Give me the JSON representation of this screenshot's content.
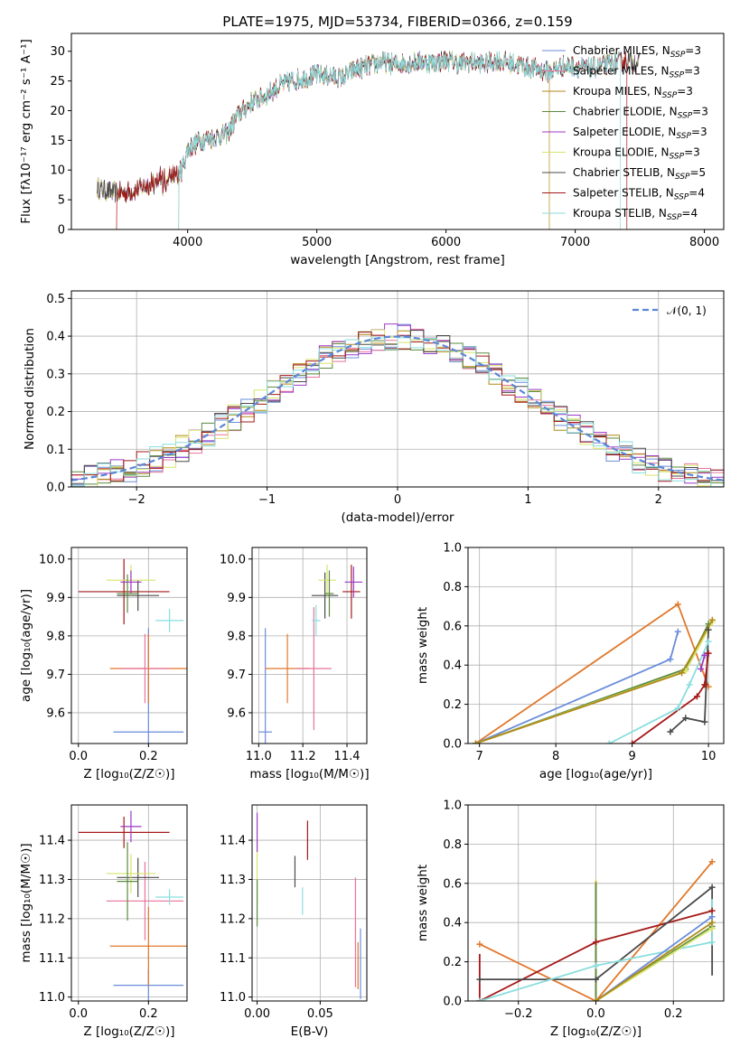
{
  "colors": {
    "Chabrier MILES": "#6a8ddb",
    "Salpeter MILES": "#e8739a",
    "Kroupa MILES": "#b08a16",
    "Chabrier ELODIE": "#5b8a3e",
    "Salpeter ELODIE": "#9b39c6",
    "Kroupa ELODIE": "#d7e36a",
    "Chabrier STELIB": "#4a4a4a",
    "Salpeter STELIB": "#a51818",
    "Kroupa STELIB": "#8adede",
    "normal": "#5b86d9",
    "orange": "#e0782c"
  },
  "chart_data": [
    {
      "id": "spectrum",
      "type": "line",
      "title": "PLATE=1975, MJD=53734, FIBERID=0366, z=0.159",
      "xlabel": "wavelength [Angstrom, rest frame]",
      "ylabel": "Flux [fλ10⁻¹⁷ erg cm⁻² s⁻¹ A⁻¹]",
      "xlim": [
        3100,
        8150
      ],
      "ylim": [
        0,
        33
      ],
      "xticks": [
        4000,
        5000,
        6000,
        7000,
        8000
      ],
      "yticks": [
        0,
        5,
        10,
        15,
        20,
        25,
        30
      ],
      "grid": false,
      "legend_position": "upper-right",
      "legend": [
        "Chabrier MILES, NSSP=3",
        "Salpeter MILES, NSSP=3",
        "Kroupa MILES, NSSP=3",
        "Chabrier ELODIE, NSSP=3",
        "Salpeter ELODIE, NSSP=3",
        "Kroupa ELODIE, NSSP=3",
        "Chabrier STELIB, NSSP=5",
        "Salpeter STELIB, NSSP=4",
        "Kroupa STELIB, NSSP=4"
      ],
      "continuum": {
        "wavelength": [
          3300,
          3400,
          3500,
          3600,
          3700,
          3800,
          3900,
          3950,
          4000,
          4100,
          4200,
          4300,
          4400,
          4500,
          4600,
          4700,
          4800,
          4900,
          5000,
          5100,
          5200,
          5300,
          5400,
          5500,
          5600,
          5700,
          5800,
          5900,
          6000,
          6100,
          6200,
          6300,
          6400,
          6500,
          6600,
          6700,
          6800,
          6900,
          7000,
          7100,
          7200,
          7300,
          7400,
          7500
        ],
        "flux": [
          7.0,
          6.3,
          6.2,
          6.6,
          7.6,
          8.2,
          9.0,
          9.5,
          13.5,
          15.0,
          15.5,
          16.0,
          19.5,
          21.5,
          22.5,
          24.0,
          25.0,
          25.5,
          26.0,
          25.8,
          25.5,
          27.0,
          27.5,
          28.2,
          27.8,
          28.0,
          28.3,
          28.0,
          28.5,
          28.0,
          28.2,
          27.8,
          28.5,
          28.0,
          27.5,
          27.0,
          26.5,
          27.5,
          27.5,
          27.0,
          27.5,
          28.0,
          28.5,
          28.0
        ]
      },
      "model_cutoffs": {
        "Salpeter STELIB": [
          3450,
          7400
        ],
        "Kroupa MILES": [
          3930,
          6800
        ],
        "Kroupa STELIB": [
          3930,
          7350
        ]
      }
    },
    {
      "id": "residuals",
      "type": "histogram",
      "xlabel": "(data-model)/error",
      "ylabel": "Normed distribution",
      "xlim": [
        -2.5,
        2.5
      ],
      "ylim": [
        0,
        0.52
      ],
      "xticks": [
        -2,
        -1,
        0,
        1,
        2
      ],
      "yticks": [
        0.0,
        0.1,
        0.2,
        0.3,
        0.4,
        0.5
      ],
      "grid": true,
      "legend_position": "upper-right",
      "legend": [
        "𝒩(0, 1)"
      ],
      "bin_width": 0.1
    },
    {
      "id": "age-vs-Z",
      "type": "errorbar",
      "xlabel": "Z [log₁₀(Z/Z☉)]",
      "ylabel": "age  [log₁₀(age/yr)]",
      "xlim": [
        -0.02,
        0.31
      ],
      "ylim": [
        9.52,
        10.03
      ],
      "xticks": [
        0.0,
        0.2
      ],
      "yticks": [
        9.6,
        9.7,
        9.8,
        9.9,
        10.0
      ],
      "grid": true,
      "points": [
        {
          "model": "Chabrier MILES",
          "x": 0.2,
          "y": 9.55,
          "xerr": 0.1,
          "yerr": 0.27
        },
        {
          "model": "orange",
          "x": 0.2,
          "y": 9.715,
          "xerr": 0.11,
          "yerr": 0.09
        },
        {
          "model": "Salpeter MILES",
          "x": 0.19,
          "y": 9.715,
          "xerr": 0.07,
          "yerr": 0.09
        },
        {
          "model": "Kroupa STELIB",
          "x": 0.26,
          "y": 9.84,
          "xerr": 0.04,
          "yerr": 0.03
        },
        {
          "model": "Salpeter STELIB",
          "x": 0.13,
          "y": 9.915,
          "xerr": 0.13,
          "yerr": 0.085
        },
        {
          "model": "Chabrier STELIB",
          "x": 0.17,
          "y": 9.905,
          "xerr": 0.06,
          "yerr": 0.04
        },
        {
          "model": "Kroupa ELODIE",
          "x": 0.15,
          "y": 9.945,
          "xerr": 0.07,
          "yerr": 0.04
        },
        {
          "model": "Chabrier ELODIE",
          "x": 0.14,
          "y": 9.91,
          "xerr": 0.03,
          "yerr": 0.05
        },
        {
          "model": "Salpeter ELODIE",
          "x": 0.15,
          "y": 9.94,
          "xerr": 0.03,
          "yerr": 0.03
        }
      ]
    },
    {
      "id": "age-vs-mass",
      "type": "errorbar",
      "xlabel": "mass [log₁₀(M/M☉)]",
      "ylabel": "",
      "xlim": [
        10.97,
        11.49
      ],
      "ylim": [
        9.52,
        10.03
      ],
      "xticks": [
        11.0,
        11.2,
        11.4
      ],
      "yticks": [
        9.6,
        9.7,
        9.8,
        9.9,
        10.0
      ],
      "grid": true,
      "points": [
        {
          "model": "Chabrier MILES",
          "x": 11.03,
          "y": 9.55,
          "xerr": 0.03,
          "yerr": 0.27
        },
        {
          "model": "orange",
          "x": 11.13,
          "y": 9.715,
          "xerr": 0.1,
          "yerr": 0.09
        },
        {
          "model": "Salpeter MILES",
          "x": 11.25,
          "y": 9.715,
          "xerr": 0.08,
          "yerr": 0.16
        },
        {
          "model": "Kroupa STELIB",
          "x": 11.26,
          "y": 9.84,
          "xerr": 0.02,
          "yerr": 0.04
        },
        {
          "model": "Salpeter STELIB",
          "x": 11.42,
          "y": 9.915,
          "xerr": 0.04,
          "yerr": 0.07
        },
        {
          "model": "Chabrier STELIB",
          "x": 11.3,
          "y": 9.905,
          "xerr": 0.06,
          "yerr": 0.06
        },
        {
          "model": "Kroupa ELODIE",
          "x": 11.31,
          "y": 9.945,
          "xerr": 0.04,
          "yerr": 0.04
        },
        {
          "model": "Chabrier ELODIE",
          "x": 11.32,
          "y": 9.91,
          "xerr": 0.02,
          "yerr": 0.06
        },
        {
          "model": "Salpeter ELODIE",
          "x": 11.43,
          "y": 9.94,
          "xerr": 0.04,
          "yerr": 0.04
        }
      ]
    },
    {
      "id": "massweight-vs-age",
      "type": "line",
      "xlabel": "age  [log₁₀(age/yr)]",
      "ylabel": "mass weight",
      "xlim": [
        6.85,
        10.2
      ],
      "ylim": [
        0,
        1
      ],
      "xticks": [
        7,
        8,
        9,
        10
      ],
      "yticks": [
        0.0,
        0.2,
        0.4,
        0.6,
        0.8,
        1.0
      ],
      "grid": true,
      "series": [
        {
          "model": "orange",
          "x": [
            6.95,
            9.6,
            10.0
          ],
          "y": [
            0.0,
            0.71,
            0.29
          ]
        },
        {
          "model": "Chabrier MILES",
          "x": [
            6.95,
            9.5,
            9.6
          ],
          "y": [
            0.0,
            0.43,
            0.57
          ]
        },
        {
          "model": "Chabrier ELODIE",
          "x": [
            6.95,
            9.7,
            10.0
          ],
          "y": [
            0.0,
            0.38,
            0.61
          ]
        },
        {
          "model": "Kroupa ELODIE",
          "x": [
            6.95,
            9.7,
            10.05
          ],
          "y": [
            0.0,
            0.37,
            0.62
          ]
        },
        {
          "model": "Kroupa MILES",
          "x": [
            6.95,
            9.65,
            10.05
          ],
          "y": [
            0.0,
            0.36,
            0.63
          ]
        },
        {
          "model": "Chabrier STELIB",
          "x": [
            9.5,
            9.7,
            9.95,
            10.0
          ],
          "y": [
            0.06,
            0.13,
            0.11,
            0.58
          ]
        },
        {
          "model": "Salpeter STELIB",
          "x": [
            9.0,
            9.85,
            9.95,
            10.0
          ],
          "y": [
            0.0,
            0.24,
            0.3,
            0.46
          ]
        },
        {
          "model": "Kroupa STELIB",
          "x": [
            8.7,
            9.6,
            9.75,
            10.0
          ],
          "y": [
            0.0,
            0.18,
            0.3,
            0.52
          ]
        },
        {
          "model": "Salpeter ELODIE",
          "x": [
            9.9,
            9.95
          ],
          "y": [
            0.38,
            0.45
          ]
        }
      ]
    },
    {
      "id": "mass-vs-Z",
      "type": "errorbar",
      "xlabel": "Z [log₁₀(Z/Z☉)]",
      "ylabel": "mass [log₁₀(M/M☉)]",
      "xlim": [
        -0.02,
        0.31
      ],
      "ylim": [
        10.99,
        11.49
      ],
      "xticks": [
        0.0,
        0.2
      ],
      "yticks": [
        11.0,
        11.1,
        11.2,
        11.3,
        11.4
      ],
      "grid": true,
      "points": [
        {
          "model": "Chabrier MILES",
          "x": 0.2,
          "y": 11.03,
          "xerr": 0.1,
          "yerr": 0.04
        },
        {
          "model": "orange",
          "x": 0.2,
          "y": 11.13,
          "xerr": 0.11,
          "yerr": 0.1
        },
        {
          "model": "Salpeter MILES",
          "x": 0.19,
          "y": 11.245,
          "xerr": 0.11,
          "yerr": 0.1
        },
        {
          "model": "Kroupa STELIB",
          "x": 0.26,
          "y": 11.255,
          "xerr": 0.04,
          "yerr": 0.02
        },
        {
          "model": "Salpeter STELIB",
          "x": 0.13,
          "y": 11.42,
          "xerr": 0.13,
          "yerr": 0.04
        },
        {
          "model": "Chabrier STELIB",
          "x": 0.17,
          "y": 11.305,
          "xerr": 0.06,
          "yerr": 0.05
        },
        {
          "model": "Kroupa ELODIE",
          "x": 0.15,
          "y": 11.315,
          "xerr": 0.07,
          "yerr": 0.05
        },
        {
          "model": "Chabrier ELODIE",
          "x": 0.14,
          "y": 11.295,
          "xerr": 0.03,
          "yerr": 0.1
        },
        {
          "model": "Salpeter ELODIE",
          "x": 0.15,
          "y": 11.435,
          "xerr": 0.03,
          "yerr": 0.04
        }
      ]
    },
    {
      "id": "mass-vs-EBV",
      "type": "errorbar",
      "xlabel": "E(B-V)",
      "ylabel": "",
      "xlim": [
        -0.004,
        0.087
      ],
      "ylim": [
        10.99,
        11.49
      ],
      "xticks": [
        0.0,
        0.05
      ],
      "yticks": [
        11.0,
        11.1,
        11.2,
        11.3,
        11.4
      ],
      "grid": true,
      "points": [
        {
          "model": "Chabrier MILES",
          "x": 0.082,
          "y": 11.085,
          "yerr": 0.09
        },
        {
          "model": "orange",
          "x": 0.08,
          "y": 11.08,
          "yerr": 0.06
        },
        {
          "model": "Salpeter MILES",
          "x": 0.078,
          "y": 11.165,
          "yerr": 0.14
        },
        {
          "model": "Kroupa STELIB",
          "x": 0.036,
          "y": 11.245,
          "yerr": 0.035
        },
        {
          "model": "Salpeter STELIB",
          "x": 0.04,
          "y": 11.4,
          "yerr": 0.05
        },
        {
          "model": "Chabrier STELIB",
          "x": 0.03,
          "y": 11.32,
          "yerr": 0.04
        },
        {
          "model": "Kroupa ELODIE",
          "x": 0.0,
          "y": 11.32,
          "yerr": 0.08
        },
        {
          "model": "Chabrier ELODIE",
          "x": 0.0,
          "y": 11.24,
          "yerr": 0.06
        },
        {
          "model": "Salpeter ELODIE",
          "x": 0.0,
          "y": 11.42,
          "yerr": 0.05
        }
      ]
    },
    {
      "id": "massweight-vs-Z",
      "type": "line",
      "xlabel": "Z [log₁₀(Z/Z☉)]",
      "ylabel": "mass weight",
      "xlim": [
        -0.33,
        0.33
      ],
      "ylim": [
        0,
        1
      ],
      "xticks": [
        -0.2,
        0.0,
        0.2
      ],
      "yticks": [
        0.0,
        0.2,
        0.4,
        0.6,
        0.8,
        1.0
      ],
      "grid": true,
      "series": [
        {
          "model": "orange",
          "x": [
            -0.3,
            0.0,
            0.3
          ],
          "y": [
            0.29,
            0.0,
            0.71
          ]
        },
        {
          "model": "Salpeter STELIB",
          "x": [
            -0.3,
            0.0,
            0.3
          ],
          "y": [
            0.0,
            0.3,
            0.46
          ]
        },
        {
          "model": "Chabrier STELIB",
          "x": [
            -0.3,
            0.0,
            0.3
          ],
          "y": [
            0.11,
            0.11,
            0.58
          ]
        },
        {
          "model": "Kroupa STELIB",
          "x": [
            -0.3,
            0.0,
            0.3
          ],
          "y": [
            0.0,
            0.18,
            0.3
          ]
        },
        {
          "model": "Chabrier MILES",
          "x": [
            0.0,
            0.3
          ],
          "y": [
            0.0,
            0.43
          ]
        },
        {
          "model": "Chabrier ELODIE",
          "x": [
            0.0,
            0.3
          ],
          "y": [
            0.0,
            0.38
          ]
        },
        {
          "model": "Kroupa ELODIE",
          "x": [
            0.0,
            0.3
          ],
          "y": [
            0.0,
            0.37
          ]
        },
        {
          "model": "Kroupa MILES",
          "x": [
            0.0,
            0.3
          ],
          "y": [
            0.0,
            0.4
          ]
        }
      ],
      "verticals": [
        {
          "model": "Salpeter STELIB",
          "x": -0.3,
          "y": [
            0.0,
            0.24
          ]
        },
        {
          "model": "Chabrier STELIB",
          "x": 0.3,
          "y": [
            0.13,
            0.58
          ]
        },
        {
          "model": "Chabrier STELIB",
          "x": 0.0,
          "y": [
            0.0,
            0.13
          ]
        },
        {
          "model": "Kroupa ELODIE",
          "x": 0.0,
          "y": [
            0.0,
            0.62
          ]
        },
        {
          "model": "Kroupa MILES",
          "x": 0.0,
          "y": [
            0.0,
            0.61
          ]
        },
        {
          "model": "Chabrier ELODIE",
          "x": 0.0,
          "y": [
            0.0,
            0.6
          ]
        },
        {
          "model": "Kroupa STELIB",
          "x": 0.3,
          "y": [
            0.3,
            0.52
          ]
        }
      ]
    }
  ]
}
